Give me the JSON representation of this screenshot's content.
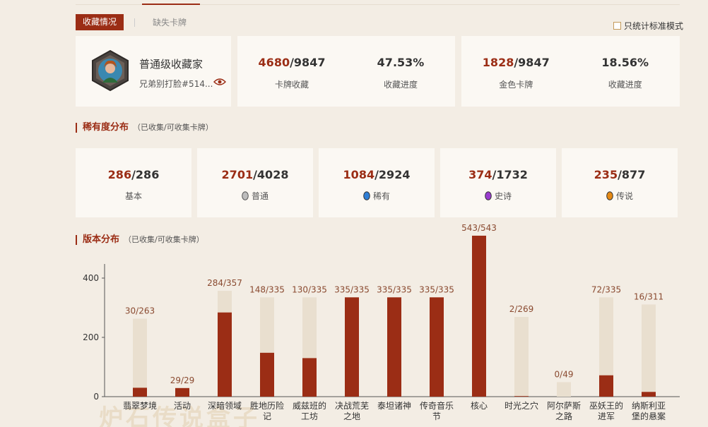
{
  "tabs": {
    "active": "收藏情况",
    "inactive": "缺失卡牌"
  },
  "std_mode_label": "只统计标准模式",
  "profile": {
    "title": "普通级收藏家",
    "username": "兄弟别打脸#514..."
  },
  "collection": {
    "cards_owned": "4680",
    "cards_total": "/9847",
    "cards_label": "卡牌收藏",
    "progress": "47.53%",
    "progress_label": "收藏进度"
  },
  "golden": {
    "owned": "1828",
    "total": "/9847",
    "label": "金色卡牌",
    "progress": "18.56%",
    "progress_label": "收藏进度"
  },
  "rarity_section": {
    "title": "稀有度分布",
    "sub": "（已收集/可收集卡牌）"
  },
  "rarity": [
    {
      "owned": "286",
      "total": "/286",
      "label": "基本",
      "gem": "none"
    },
    {
      "owned": "2701",
      "total": "/4028",
      "label": "普通",
      "gem": "#bdbdbd"
    },
    {
      "owned": "1084",
      "total": "/2924",
      "label": "稀有",
      "gem": "#2f7fd6"
    },
    {
      "owned": "374",
      "total": "/1732",
      "label": "史诗",
      "gem": "#9a3ccf"
    },
    {
      "owned": "235",
      "total": "/877",
      "label": "传说",
      "gem": "#e68a14"
    }
  ],
  "version_section": {
    "title": "版本分布",
    "sub": "（已收集/可收集卡牌）"
  },
  "colors": {
    "accent": "#9b2d15",
    "total_bar": "#e9dfcf",
    "background": "#f3ede4"
  },
  "chart_data": {
    "type": "bar",
    "categories": [
      "翡翠梦境",
      "活动",
      "深暗领域",
      "胜地历险记",
      "威兹班的工坊",
      "决战荒芜之地",
      "泰坦诸神",
      "传奇音乐节",
      "核心",
      "时光之穴",
      "阿尔萨斯之路",
      "巫妖王的进军",
      "纳斯利亚堡的悬案"
    ],
    "category_lines": [
      [
        "翡翠梦境"
      ],
      [
        "活动"
      ],
      [
        "深暗领域"
      ],
      [
        "胜地历险",
        "记"
      ],
      [
        "威兹班的",
        "工坊"
      ],
      [
        "决战荒芜",
        "之地"
      ],
      [
        "泰坦诸神"
      ],
      [
        "传奇音乐",
        "节"
      ],
      [
        "核心"
      ],
      [
        "时光之穴"
      ],
      [
        "阿尔萨斯",
        "之路"
      ],
      [
        "巫妖王的",
        "进军"
      ],
      [
        "纳斯利亚",
        "堡的悬案"
      ]
    ],
    "series": [
      {
        "name": "已收集",
        "values": [
          30,
          29,
          284,
          148,
          130,
          335,
          335,
          335,
          543,
          2,
          0,
          72,
          16
        ]
      },
      {
        "name": "可收集",
        "values": [
          263,
          29,
          357,
          335,
          335,
          335,
          335,
          335,
          543,
          269,
          49,
          335,
          311
        ]
      }
    ],
    "labels": [
      "30/263",
      "29/29",
      "284/357",
      "148/335",
      "130/335",
      "335/335",
      "335/335",
      "335/335",
      "543/543",
      "2/269",
      "0/49",
      "72/335",
      "16/311"
    ],
    "yticks": [
      0,
      200,
      400
    ],
    "ylim": [
      0,
      450
    ],
    "grid": false
  }
}
